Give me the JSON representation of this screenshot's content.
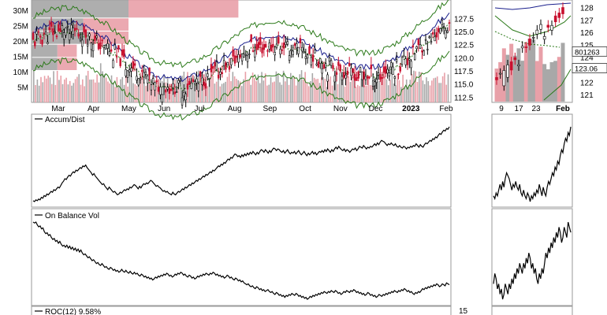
{
  "chart_data": [
    {
      "type": "candlestick",
      "panel": "price-main",
      "x_ticks": [
        "Mar",
        "Apr",
        "May",
        "Jun",
        "Jul",
        "Aug",
        "Sep",
        "Oct",
        "Nov",
        "Dec",
        "2023",
        "Feb"
      ],
      "price_ticks": [
        "127.5",
        "125.0",
        "122.5",
        "120.0",
        "117.5",
        "115.0",
        "112.5"
      ],
      "price_ylim": [
        111.5,
        131
      ],
      "volume_ticks": [
        "30M",
        "25M",
        "20M",
        "15M",
        "10M",
        "5M"
      ],
      "volume_ylim": [
        0,
        32
      ],
      "volume_by_price_bars": [
        {
          "price_low": 127.5,
          "price_high": 131.0,
          "up": 15,
          "down": 17
        },
        {
          "price_low": 125.0,
          "price_high": 127.5,
          "up": 8,
          "down": 7
        },
        {
          "price_low": 122.5,
          "price_high": 125.0,
          "up": 9,
          "down": 6
        },
        {
          "price_low": 120.0,
          "price_high": 122.5,
          "up": 4,
          "down": 3
        },
        {
          "price_low": 117.5,
          "price_high": 120.0,
          "up": 4,
          "down": 3
        }
      ],
      "colors": {
        "up": "#000000",
        "down": "#c8102e",
        "upper_band": "#2c7a1a",
        "ma": "#1a1f8c",
        "ma_dotted": "#2c7a1a",
        "volume": "#a8a8a8",
        "volume_down": "#e8a0a8"
      }
    },
    {
      "type": "candlestick",
      "panel": "price-zoom",
      "x_ticks": [
        "9",
        "17",
        "23",
        "Feb"
      ],
      "price_ticks": [
        "128",
        "127",
        "126",
        "125",
        "124",
        "123",
        "122",
        "121"
      ],
      "price_ylim": [
        120.5,
        128.6
      ],
      "price_badges": [
        "801263",
        "123.06"
      ]
    },
    {
      "type": "line",
      "panel": "accum-dist",
      "title": "Accum/Dist",
      "series": [
        {
          "name": "Accum/Dist",
          "values": [
            1,
            0,
            2,
            1,
            3,
            2,
            5,
            4,
            7,
            6,
            9,
            8,
            10,
            12,
            11,
            14,
            13,
            15,
            17,
            16,
            19,
            22,
            24,
            27,
            26,
            29,
            31,
            30,
            33,
            35,
            34,
            37,
            36,
            38,
            40,
            39,
            42,
            41,
            43,
            40,
            38,
            36,
            34,
            31,
            33,
            30,
            28,
            26,
            24,
            22,
            20,
            21,
            18,
            16,
            14,
            17,
            15,
            13,
            11,
            12,
            10,
            8,
            9,
            11,
            10,
            12,
            14,
            13,
            15,
            14,
            17,
            16,
            18,
            20,
            19,
            17,
            15,
            18,
            16,
            19,
            21,
            20,
            22,
            21,
            23,
            25,
            24,
            22,
            20,
            18,
            19,
            17,
            16,
            14,
            12,
            13,
            11,
            12,
            10,
            9,
            8,
            11,
            9,
            8,
            10,
            12,
            11,
            13,
            15,
            14,
            17,
            16,
            18,
            20,
            19,
            22,
            21,
            23,
            25,
            24,
            27,
            26,
            28,
            30,
            29,
            32,
            31,
            33,
            35,
            34,
            37,
            36,
            38,
            40,
            42,
            41,
            44,
            43,
            46,
            45,
            48,
            50,
            49,
            52,
            51,
            54,
            56,
            55,
            53,
            54,
            52,
            55,
            53,
            56,
            54,
            57,
            55,
            58,
            56,
            59,
            57,
            55,
            58,
            56,
            59,
            61,
            60,
            58,
            61,
            59,
            57,
            60,
            58,
            61,
            63,
            62,
            60,
            62,
            61,
            59,
            58,
            60,
            57,
            59,
            61,
            58,
            56,
            58,
            57,
            59,
            56,
            58,
            60,
            57,
            55,
            57,
            59,
            56,
            54,
            57,
            55,
            57,
            59,
            56,
            58,
            55,
            57,
            59,
            58,
            60,
            58,
            61,
            59,
            62,
            60,
            58,
            61,
            59,
            62,
            64,
            62,
            65,
            63,
            61,
            60,
            62,
            59,
            61,
            60,
            58,
            60,
            62,
            61,
            63,
            60,
            62,
            65,
            64,
            63,
            66,
            64,
            62,
            64,
            63,
            65,
            64,
            66,
            68,
            66,
            69,
            67,
            70,
            72,
            71,
            70,
            68,
            66,
            68,
            67,
            69,
            67,
            66,
            68,
            65,
            64,
            66,
            64,
            63,
            65,
            64,
            62,
            64,
            63,
            65,
            64,
            66,
            65,
            68,
            66,
            64,
            67,
            65,
            64,
            67,
            69,
            68,
            70,
            72,
            71,
            74,
            73,
            76,
            75,
            78,
            80,
            79,
            82,
            84,
            83,
            86,
            85,
            88
          ]
        }
      ]
    },
    {
      "type": "line",
      "panel": "on-balance-vol",
      "title": "On Balance Vol",
      "series": [
        {
          "name": "On Balance Vol",
          "values": [
            100,
            99,
            100,
            97,
            95,
            96,
            93,
            94,
            90,
            88,
            89,
            86,
            87,
            84,
            82,
            83,
            80,
            81,
            78,
            80,
            77,
            75,
            76,
            74,
            76,
            73,
            75,
            72,
            74,
            71,
            73,
            70,
            72,
            69,
            71,
            68,
            66,
            67,
            65,
            63,
            64,
            62,
            60,
            61,
            59,
            57,
            58,
            56,
            55,
            57,
            55,
            53,
            54,
            52,
            51,
            53,
            52,
            50,
            51,
            49,
            50,
            48,
            49,
            51,
            49,
            48,
            50,
            48,
            47,
            49,
            47,
            46,
            48,
            46,
            47,
            45,
            44,
            46,
            45,
            43,
            44,
            42,
            43,
            41,
            42,
            40,
            41,
            43,
            42,
            44,
            43,
            45,
            44,
            46,
            45,
            47,
            46,
            44,
            45,
            43,
            44,
            46,
            45,
            47,
            46,
            48,
            47,
            45,
            46,
            44,
            43,
            45,
            44,
            42,
            43,
            41,
            42,
            44,
            43,
            45,
            44,
            46,
            45,
            47,
            46,
            45,
            47,
            46,
            48,
            47,
            45,
            46,
            44,
            45,
            43,
            44,
            42,
            43,
            45,
            44,
            42,
            43,
            41,
            40,
            42,
            41,
            39,
            40,
            38,
            39,
            37,
            36,
            35,
            36,
            34,
            33,
            34,
            32,
            31,
            33,
            32,
            30,
            31,
            29,
            30,
            28,
            29,
            30,
            28,
            27,
            28,
            26,
            25,
            27,
            26,
            24,
            25,
            23,
            24,
            22,
            24,
            23,
            25,
            24,
            26,
            25,
            24,
            26,
            25,
            23,
            24,
            22,
            23,
            21,
            22,
            20,
            21,
            23,
            22,
            24,
            23,
            25,
            24,
            26,
            25,
            27,
            26,
            28,
            27,
            26,
            28,
            27,
            29,
            28,
            27,
            29,
            28,
            26,
            27,
            25,
            26,
            28,
            27,
            29,
            28,
            27,
            29,
            28,
            30,
            29,
            27,
            28,
            26,
            27,
            25,
            26,
            24,
            25,
            27,
            26,
            24,
            25,
            23,
            24,
            22,
            23,
            25,
            24,
            23,
            25,
            24,
            26,
            25,
            27,
            26,
            28,
            27,
            29,
            28,
            27,
            29,
            28,
            30,
            29,
            31,
            30,
            28,
            29,
            27,
            28,
            26,
            25,
            27,
            26,
            28,
            27,
            29,
            31,
            30,
            32,
            31,
            33,
            32,
            34,
            33,
            35,
            34,
            36,
            35,
            33,
            34,
            36,
            35,
            34,
            37,
            36,
            35
          ]
        }
      ]
    },
    {
      "type": "line",
      "panel": "roc",
      "title": "ROC(12) 9.58%",
      "y_ticks": [
        "15"
      ]
    }
  ]
}
